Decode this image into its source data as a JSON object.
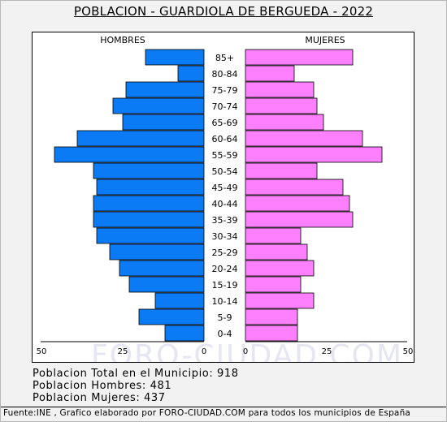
{
  "header": {
    "title": "POBLACION - GUARDIOLA DE BERGUEDA - 2022"
  },
  "chart_data": {
    "type": "bar",
    "title": "POBLACION - GUARDIOLA DE BERGUEDA - 2022",
    "left_label": "HOMBRES",
    "right_label": "MUJERES",
    "categories": [
      "85+",
      "80-84",
      "75-79",
      "70-74",
      "65-69",
      "60-64",
      "55-59",
      "50-54",
      "45-49",
      "40-44",
      "35-39",
      "30-34",
      "25-29",
      "20-24",
      "15-19",
      "10-14",
      "5-9",
      "0-4"
    ],
    "series": [
      {
        "name": "HOMBRES",
        "values": [
          18,
          8,
          24,
          28,
          25,
          39,
          46,
          34,
          33,
          34,
          34,
          33,
          29,
          26,
          23,
          15,
          20,
          12
        ]
      },
      {
        "name": "MUJERES",
        "values": [
          33,
          15,
          21,
          22,
          24,
          36,
          42,
          22,
          30,
          32,
          33,
          17,
          19,
          21,
          17,
          21,
          16,
          16
        ]
      }
    ],
    "xlim": [
      0,
      50
    ],
    "x_ticks_left": [
      "50",
      "25",
      "0"
    ],
    "x_ticks_right": [
      "0",
      "25",
      "50"
    ],
    "watermark": "FORO-CIUDAD.COM",
    "colors": {
      "male": "#0a7af5",
      "female": "#ff80ff",
      "outline": "#000000"
    }
  },
  "summary": {
    "total": "Poblacion Total en el Municipio: 918",
    "men": "Poblacion Hombres: 481",
    "women": "Poblacion Mujeres: 437"
  },
  "footer": {
    "source": "Fuente:INE , Grafico elaborado por FORO-CIUDAD.COM para todos los municipios de España"
  }
}
